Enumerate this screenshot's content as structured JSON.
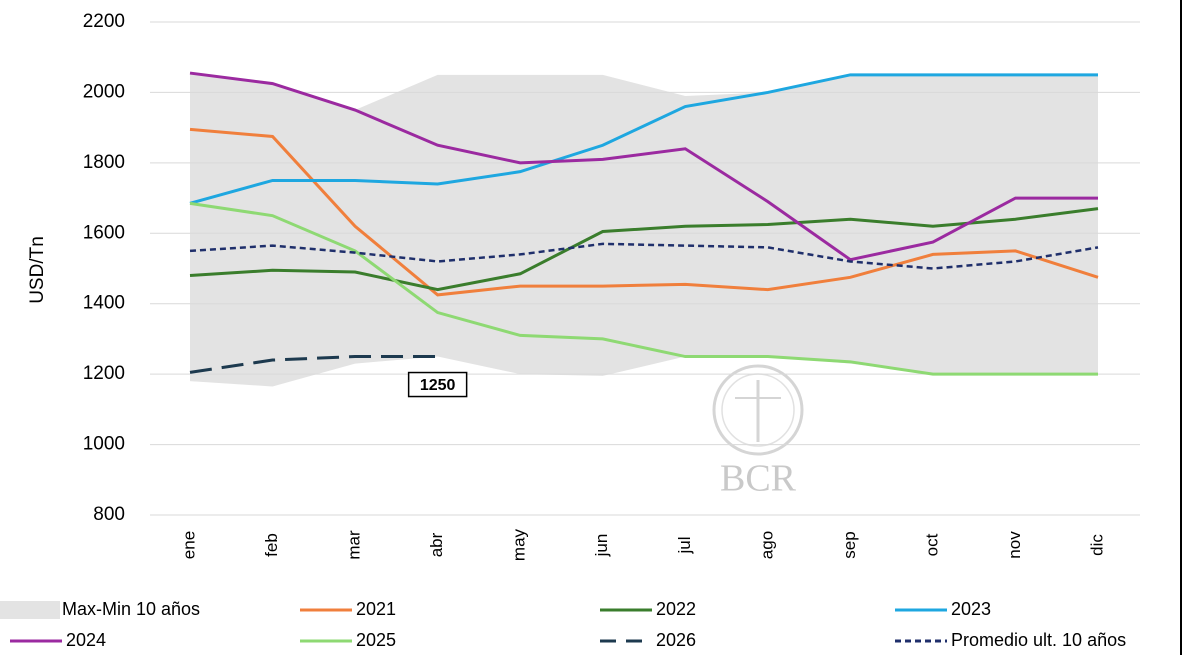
{
  "chart_data": {
    "type": "line",
    "y_label": "USD/Tn",
    "categories": [
      "ene",
      "feb",
      "mar",
      "abr",
      "may",
      "jun",
      "jul",
      "ago",
      "sep",
      "oct",
      "nov",
      "dic"
    ],
    "ylim": [
      800,
      2200
    ],
    "yticks": [
      800,
      1000,
      1200,
      1400,
      1600,
      1800,
      2000,
      2200
    ],
    "grid": true,
    "band": {
      "name": "Max-Min 10 años",
      "color": "#e3e3e3",
      "upper": [
        2055,
        2030,
        1950,
        2050,
        2050,
        2050,
        1990,
        2000,
        2050,
        2050,
        2050,
        2050
      ],
      "lower": [
        1180,
        1165,
        1230,
        1250,
        1200,
        1195,
        1250,
        1250,
        1230,
        1200,
        1200,
        1200
      ]
    },
    "series": [
      {
        "name": "2021",
        "color": "#f07f3c",
        "style": "solid",
        "values": [
          1895,
          1875,
          1620,
          1425,
          1450,
          1450,
          1455,
          1440,
          1475,
          1540,
          1550,
          1475
        ]
      },
      {
        "name": "2022",
        "color": "#3a7d2c",
        "style": "solid",
        "values": [
          1480,
          1495,
          1490,
          1440,
          1485,
          1605,
          1620,
          1625,
          1640,
          1620,
          1640,
          1670
        ]
      },
      {
        "name": "2023",
        "color": "#1ea7e0",
        "style": "solid",
        "values": [
          1685,
          1750,
          1750,
          1740,
          1775,
          1850,
          1960,
          2000,
          2050,
          2050,
          2050,
          2050
        ]
      },
      {
        "name": "2024",
        "color": "#9b2aa0",
        "style": "solid",
        "values": [
          2055,
          2025,
          1950,
          1850,
          1800,
          1810,
          1840,
          1690,
          1525,
          1575,
          1700,
          1700
        ]
      },
      {
        "name": "2025",
        "color": "#8ed973",
        "style": "solid",
        "values": [
          1685,
          1650,
          1550,
          1375,
          1310,
          1300,
          1250,
          1250,
          1235,
          1200,
          1200,
          1200
        ]
      },
      {
        "name": "2026",
        "color": "#1d3a4f",
        "style": "dashed",
        "values": [
          1205,
          1240,
          1250,
          1250,
          null,
          null,
          null,
          null,
          null,
          null,
          null,
          null
        ]
      },
      {
        "name": "Promedio ult. 10 años",
        "color": "#1f2f6b",
        "style": "dotted",
        "values": [
          1550,
          1565,
          1545,
          1520,
          1540,
          1570,
          1565,
          1560,
          1520,
          1500,
          1520,
          1560
        ]
      }
    ],
    "value_label": {
      "series": 5,
      "index": 3
    },
    "watermark": "BCR"
  }
}
